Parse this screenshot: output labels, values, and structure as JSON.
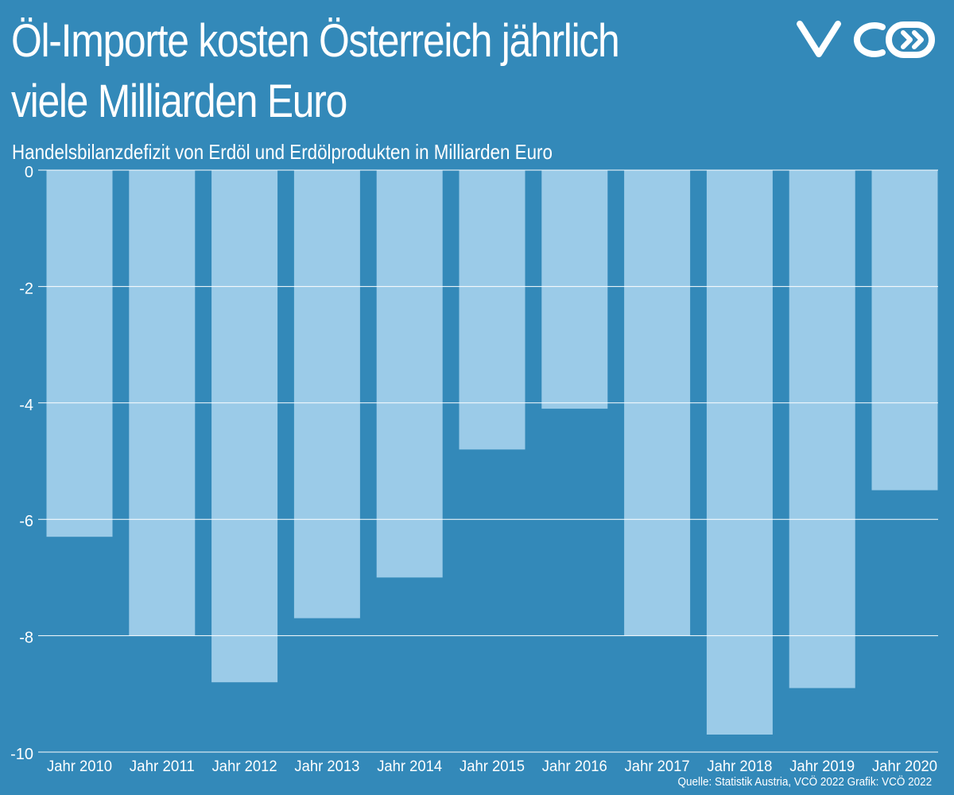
{
  "chart_data": {
    "type": "bar",
    "title_lines": [
      "Öl-Importe kosten Österreich jährlich",
      "viele Milliarden Euro"
    ],
    "subtitle": "Handelsbilanzdefizit von Erdöl und Erdölprodukten in Milliarden Euro",
    "categories": [
      "Jahr 2010",
      "Jahr 2011",
      "Jahr 2012",
      "Jahr 2013",
      "Jahr 2014",
      "Jahr 2015",
      "Jahr 2016",
      "Jahr 2017",
      "Jahr 2018",
      "Jahr 2019",
      "Jahr 2020"
    ],
    "values": [
      -6.3,
      -8.0,
      -8.8,
      -7.7,
      -7.0,
      -4.8,
      -4.1,
      -8.0,
      -9.7,
      -8.9,
      -5.5
    ],
    "yticks": [
      0,
      -2,
      -4,
      -6,
      -8,
      -10
    ],
    "ylim": [
      -10,
      0
    ],
    "grid": true,
    "colors": {
      "background": "#3389b9",
      "bar": "#9bcbe8",
      "grid": "#ffffff",
      "text": "#ffffff"
    }
  },
  "footer": {
    "source": "Quelle: Statistik Austria, VCÖ 2022 Grafik: VCÖ 2022"
  },
  "logo": {
    "icon": "vco-logo"
  }
}
